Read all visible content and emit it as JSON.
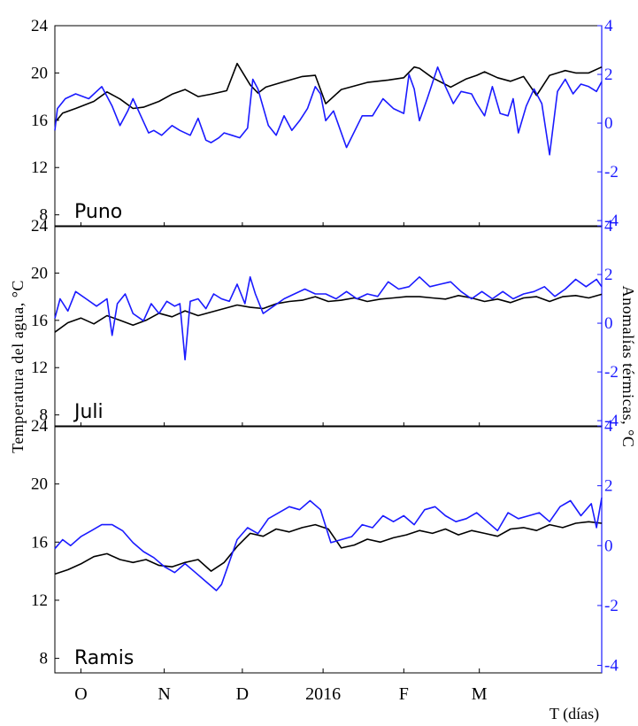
{
  "chart_data": {
    "type": "line",
    "ylabel_left": "Temperatura del agua, °C",
    "ylabel_right": "Anomalías térmicas, °C",
    "xlabel": "T (días)",
    "x_ticks": [
      "O",
      "N",
      "D",
      "2016",
      "F",
      "M"
    ],
    "x_range_days": [
      0,
      210
    ],
    "x_tick_days": [
      10,
      42,
      72,
      103,
      134,
      163
    ],
    "left_ticks": [
      "8",
      "12",
      "16",
      "20",
      "24"
    ],
    "right_ticks": [
      "-4",
      "-2",
      "0",
      "2",
      "4"
    ],
    "ylim_left": [
      7,
      24
    ],
    "ylim_right": [
      -4.25,
      4
    ],
    "colors": {
      "temperature": "#000000",
      "anomaly": "#1a1aff",
      "right_axis": "#1a1aff"
    },
    "panels": [
      {
        "label": "Puno",
        "series": [
          {
            "color": "#000000",
            "x": [
              0,
              3,
              8,
              15,
              20,
              25,
              30,
              34,
              40,
              45,
              50,
              55,
              60,
              66,
              70,
              75,
              78,
              81,
              87,
              95,
              100,
              104,
              110,
              120,
              128,
              134,
              138,
              140,
              145,
              152,
              158,
              162,
              165,
              170,
              175,
              180,
              185,
              190,
              196,
              200,
              205,
              210
            ],
            "y": [
              15.8,
              16.6,
              17.0,
              17.6,
              18.4,
              17.8,
              17.0,
              17.1,
              17.6,
              18.2,
              18.6,
              18.0,
              18.2,
              18.5,
              20.8,
              19.0,
              18.3,
              18.8,
              19.2,
              19.7,
              19.8,
              17.4,
              18.6,
              19.2,
              19.4,
              19.6,
              20.5,
              20.4,
              19.6,
              18.8,
              19.5,
              19.8,
              20.1,
              19.6,
              19.3,
              19.7,
              18.1,
              19.8,
              20.2,
              20.0,
              20.0,
              20.5
            ]
          },
          {
            "color": "#1a1aff",
            "x": [
              0,
              1,
              4,
              8,
              13,
              18,
              22,
              25,
              28,
              30,
              33,
              36,
              38,
              41,
              45,
              48,
              52,
              55,
              58,
              60,
              63,
              65,
              68,
              71,
              74,
              76,
              78,
              82,
              85,
              88,
              91,
              94,
              97,
              100,
              102,
              104,
              107,
              112,
              118,
              122,
              126,
              130,
              134,
              136,
              138,
              140,
              143,
              147,
              150,
              153,
              156,
              160,
              162,
              165,
              168,
              171,
              174,
              176,
              178,
              181,
              184,
              187,
              190,
              193,
              196,
              199,
              202,
              205,
              208,
              210
            ],
            "y": [
              -0.3,
              0.6,
              1.0,
              1.2,
              1.0,
              1.5,
              0.7,
              -0.1,
              0.5,
              1.0,
              0.3,
              -0.4,
              -0.3,
              -0.5,
              -0.1,
              -0.3,
              -0.5,
              0.2,
              -0.7,
              -0.8,
              -0.6,
              -0.4,
              -0.5,
              -0.6,
              -0.2,
              1.8,
              1.4,
              -0.1,
              -0.5,
              0.3,
              -0.3,
              0.1,
              0.6,
              1.5,
              1.2,
              0.1,
              0.5,
              -1.0,
              0.3,
              0.3,
              1.0,
              0.6,
              0.4,
              2.0,
              1.4,
              0.1,
              1.0,
              2.3,
              1.5,
              0.8,
              1.3,
              1.2,
              0.8,
              0.3,
              1.5,
              0.4,
              0.3,
              1.0,
              -0.4,
              0.7,
              1.4,
              0.8,
              -1.3,
              1.3,
              1.8,
              1.2,
              1.6,
              1.5,
              1.3,
              1.7
            ]
          }
        ]
      },
      {
        "label": "Juli",
        "series": [
          {
            "color": "#000000",
            "x": [
              0,
              5,
              10,
              15,
              20,
              25,
              30,
              35,
              40,
              45,
              50,
              55,
              60,
              65,
              70,
              75,
              80,
              85,
              90,
              95,
              100,
              105,
              110,
              115,
              120,
              125,
              130,
              135,
              140,
              145,
              150,
              155,
              160,
              165,
              170,
              175,
              180,
              185,
              190,
              195,
              200,
              205,
              210
            ],
            "y": [
              15.0,
              15.8,
              16.2,
              15.7,
              16.4,
              16.0,
              15.6,
              16.0,
              16.6,
              16.3,
              16.8,
              16.4,
              16.7,
              17.0,
              17.3,
              17.1,
              17.0,
              17.4,
              17.6,
              17.7,
              18.0,
              17.6,
              17.7,
              17.9,
              17.6,
              17.8,
              17.9,
              18.0,
              18.0,
              17.9,
              17.8,
              18.1,
              17.9,
              17.6,
              17.8,
              17.5,
              17.9,
              18.0,
              17.6,
              18.0,
              18.1,
              17.9,
              18.2
            ]
          },
          {
            "color": "#1a1aff",
            "x": [
              0,
              2,
              5,
              8,
              12,
              16,
              20,
              22,
              24,
              27,
              30,
              34,
              37,
              40,
              43,
              46,
              48,
              50,
              52,
              55,
              58,
              61,
              64,
              67,
              70,
              73,
              75,
              77,
              80,
              84,
              88,
              92,
              96,
              100,
              104,
              108,
              112,
              116,
              120,
              124,
              128,
              132,
              136,
              140,
              144,
              148,
              152,
              156,
              160,
              164,
              168,
              172,
              176,
              180,
              184,
              188,
              192,
              196,
              200,
              204,
              208,
              210
            ],
            "y": [
              0.2,
              1.0,
              0.5,
              1.3,
              1.0,
              0.7,
              1.0,
              -0.5,
              0.8,
              1.2,
              0.4,
              0.1,
              0.8,
              0.4,
              0.9,
              0.7,
              0.8,
              -1.5,
              0.9,
              1.0,
              0.6,
              1.2,
              1.0,
              0.9,
              1.6,
              0.8,
              1.9,
              1.2,
              0.4,
              0.7,
              1.0,
              1.2,
              1.4,
              1.2,
              1.2,
              1.0,
              1.3,
              1.0,
              1.2,
              1.1,
              1.7,
              1.4,
              1.5,
              1.9,
              1.5,
              1.6,
              1.7,
              1.3,
              1.0,
              1.3,
              1.0,
              1.3,
              1.0,
              1.2,
              1.3,
              1.5,
              1.1,
              1.4,
              1.8,
              1.5,
              1.8,
              1.5
            ]
          }
        ]
      },
      {
        "label": "Ramis",
        "series": [
          {
            "color": "#000000",
            "x": [
              0,
              5,
              10,
              15,
              20,
              25,
              30,
              35,
              40,
              45,
              50,
              55,
              60,
              65,
              70,
              75,
              80,
              85,
              90,
              95,
              100,
              105,
              110,
              115,
              120,
              125,
              130,
              135,
              140,
              145,
              150,
              155,
              160,
              165,
              170,
              175,
              180,
              185,
              190,
              195,
              200,
              205,
              210
            ],
            "y": [
              13.8,
              14.1,
              14.5,
              15.0,
              15.2,
              14.8,
              14.6,
              14.8,
              14.4,
              14.3,
              14.6,
              14.8,
              14.0,
              14.6,
              15.7,
              16.6,
              16.4,
              16.9,
              16.7,
              17.0,
              17.2,
              16.9,
              15.6,
              15.8,
              16.2,
              16.0,
              16.3,
              16.5,
              16.8,
              16.6,
              16.9,
              16.5,
              16.8,
              16.6,
              16.4,
              16.9,
              17.0,
              16.8,
              17.2,
              17.0,
              17.3,
              17.4,
              17.3
            ]
          },
          {
            "color": "#1a1aff",
            "x": [
              0,
              3,
              6,
              10,
              14,
              18,
              22,
              26,
              30,
              34,
              38,
              42,
              46,
              50,
              54,
              58,
              62,
              64,
              66,
              70,
              74,
              78,
              82,
              86,
              90,
              94,
              98,
              102,
              106,
              110,
              114,
              118,
              122,
              126,
              130,
              134,
              138,
              142,
              146,
              150,
              154,
              158,
              162,
              166,
              170,
              174,
              178,
              182,
              186,
              190,
              194,
              198,
              202,
              206,
              208,
              210
            ],
            "y": [
              -0.1,
              0.2,
              0.0,
              0.3,
              0.5,
              0.7,
              0.7,
              0.5,
              0.1,
              -0.2,
              -0.4,
              -0.7,
              -0.9,
              -0.6,
              -0.9,
              -1.2,
              -1.5,
              -1.3,
              -0.8,
              0.2,
              0.6,
              0.4,
              0.9,
              1.1,
              1.3,
              1.2,
              1.5,
              1.2,
              0.1,
              0.2,
              0.3,
              0.7,
              0.6,
              1.0,
              0.8,
              1.0,
              0.7,
              1.2,
              1.3,
              1.0,
              0.8,
              0.9,
              1.1,
              0.8,
              0.5,
              1.1,
              0.9,
              1.0,
              1.1,
              0.8,
              1.3,
              1.5,
              1.0,
              1.4,
              0.6,
              1.6
            ]
          }
        ]
      }
    ]
  }
}
